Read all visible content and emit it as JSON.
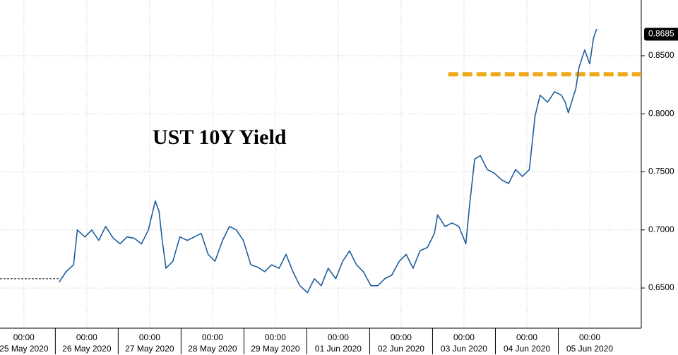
{
  "chart_data": {
    "type": "line",
    "annotation": "UST 10Y Yield",
    "xlim": [
      -0.38,
      9.82
    ],
    "xticks": [
      {
        "value": 0,
        "label": "25 May 2020"
      },
      {
        "value": 1,
        "label": "26 May 2020"
      },
      {
        "value": 2,
        "label": "27 May 2020"
      },
      {
        "value": 3,
        "label": "28 May 2020"
      },
      {
        "value": 4,
        "label": "29 May 2020"
      },
      {
        "value": 5,
        "label": "01 Jun 2020"
      },
      {
        "value": 6,
        "label": "02 Jun 2020"
      },
      {
        "value": 7,
        "label": "03 Jun 2020"
      },
      {
        "value": 8,
        "label": "04 Jun 2020"
      },
      {
        "value": 9,
        "label": "05 Jun 2020"
      }
    ],
    "xtick_sublabel": "00:00",
    "ylim": [
      0.6154,
      0.898
    ],
    "yticks": [
      {
        "value": 0.65,
        "label": "0.6500"
      },
      {
        "value": 0.7,
        "label": "0.7000"
      },
      {
        "value": 0.75,
        "label": "0.7500"
      },
      {
        "value": 0.8,
        "label": "0.8000"
      },
      {
        "value": 0.85,
        "label": "0.8500"
      }
    ],
    "grid": true,
    "last_value": 0.8685,
    "series": [
      {
        "color": "#1f5e9e",
        "style": "solid",
        "x": [
          0.56,
          0.67,
          0.79,
          0.85,
          0.97,
          1.08,
          1.19,
          1.3,
          1.42,
          1.53,
          1.64,
          1.75,
          1.87,
          1.98,
          2.09,
          2.15,
          2.2,
          2.26,
          2.37,
          2.48,
          2.6,
          2.71,
          2.82,
          2.93,
          3.04,
          3.16,
          3.27,
          3.38,
          3.49,
          3.61,
          3.72,
          3.83,
          3.94,
          4.06,
          4.17,
          4.28,
          4.39,
          4.51,
          4.62,
          4.73,
          4.84,
          4.96,
          5.07,
          5.18,
          5.29,
          5.4,
          5.52,
          5.63,
          5.74,
          5.85,
          5.97,
          6.08,
          6.19,
          6.3,
          6.42,
          6.53,
          6.58,
          6.7,
          6.81,
          6.92,
          7.03,
          7.09,
          7.17,
          7.26,
          7.37,
          7.48,
          7.6,
          7.71,
          7.82,
          7.93,
          8.04,
          8.13,
          8.21,
          8.33,
          8.44,
          8.55,
          8.61,
          8.66,
          8.78,
          8.83,
          8.92,
          9.0,
          9.06,
          9.11
        ],
        "values": [
          0.655,
          0.664,
          0.67,
          0.7,
          0.694,
          0.7,
          0.691,
          0.703,
          0.693,
          0.688,
          0.694,
          0.693,
          0.688,
          0.7,
          0.725,
          0.716,
          0.691,
          0.667,
          0.673,
          0.694,
          0.691,
          0.694,
          0.697,
          0.679,
          0.673,
          0.691,
          0.703,
          0.7,
          0.691,
          0.67,
          0.668,
          0.664,
          0.67,
          0.667,
          0.679,
          0.664,
          0.652,
          0.646,
          0.658,
          0.652,
          0.667,
          0.658,
          0.673,
          0.682,
          0.67,
          0.664,
          0.652,
          0.652,
          0.658,
          0.661,
          0.673,
          0.679,
          0.667,
          0.682,
          0.685,
          0.697,
          0.713,
          0.703,
          0.706,
          0.703,
          0.688,
          0.722,
          0.761,
          0.764,
          0.752,
          0.749,
          0.743,
          0.74,
          0.752,
          0.746,
          0.752,
          0.798,
          0.816,
          0.81,
          0.819,
          0.816,
          0.81,
          0.801,
          0.822,
          0.84,
          0.855,
          0.843,
          0.865,
          0.873
        ]
      },
      {
        "color": "#000000",
        "style": "dashed",
        "x": [
          -0.38,
          0.56
        ],
        "values": [
          0.658,
          0.658
        ]
      }
    ],
    "reference_line": {
      "value": 0.834,
      "x": [
        6.75,
        9.82
      ],
      "color": "#f0a81c"
    }
  }
}
